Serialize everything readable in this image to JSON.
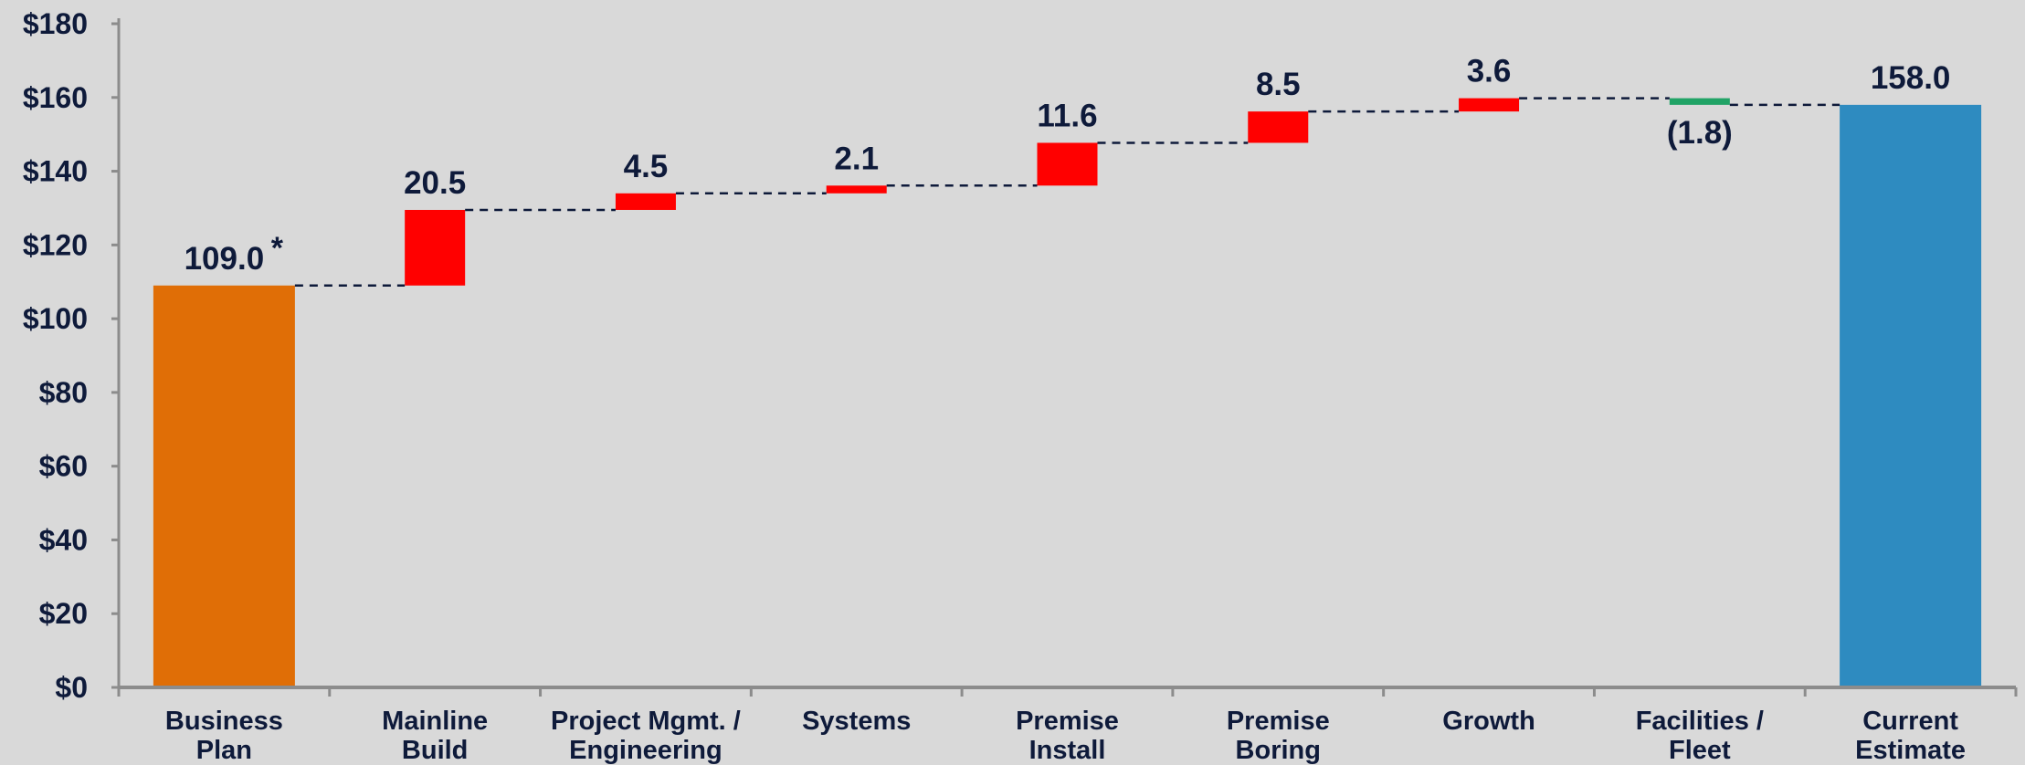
{
  "chart_data": {
    "type": "waterfall",
    "title": "",
    "xlabel": "",
    "ylabel": "",
    "ylim": [
      0,
      180
    ],
    "y_ticks": [
      0,
      20,
      40,
      60,
      80,
      100,
      120,
      140,
      160,
      180
    ],
    "y_tick_labels": [
      "$0",
      "$20",
      "$40",
      "$60",
      "$80",
      "$100",
      "$120",
      "$140",
      "$160",
      "$180"
    ],
    "grid": false,
    "connector_lines": "dashed",
    "colors": {
      "start_total": "#e06e06",
      "end_total": "#2e8bc0",
      "increase": "#ff0000",
      "decrease": "#21a366",
      "connector": "#0e1a3a",
      "axis": "#8c8c8c",
      "text": "#0e1a3a",
      "background": "#d9d9d9"
    },
    "steps": [
      {
        "category": [
          "Business",
          "Plan"
        ],
        "kind": "total",
        "value": 109.0,
        "label": "109.0",
        "marker": "*"
      },
      {
        "category": [
          "Mainline",
          "Build"
        ],
        "kind": "delta",
        "value": 20.5,
        "label": "20.5"
      },
      {
        "category": [
          "Project Mgmt. /",
          "Engineering"
        ],
        "kind": "delta",
        "value": 4.5,
        "label": "4.5"
      },
      {
        "category": [
          "Systems"
        ],
        "kind": "delta",
        "value": 2.1,
        "label": "2.1"
      },
      {
        "category": [
          "Premise",
          "Install"
        ],
        "kind": "delta",
        "value": 11.6,
        "label": "11.6"
      },
      {
        "category": [
          "Premise",
          "Boring"
        ],
        "kind": "delta",
        "value": 8.5,
        "label": "8.5"
      },
      {
        "category": [
          "Growth"
        ],
        "kind": "delta",
        "value": 3.6,
        "label": "3.6"
      },
      {
        "category": [
          "Facilities /",
          "Fleet"
        ],
        "kind": "delta",
        "value": -1.8,
        "label": "(1.8)"
      },
      {
        "category": [
          "Current",
          "Estimate"
        ],
        "kind": "total",
        "value": 158.0,
        "label": "158.0"
      }
    ]
  }
}
